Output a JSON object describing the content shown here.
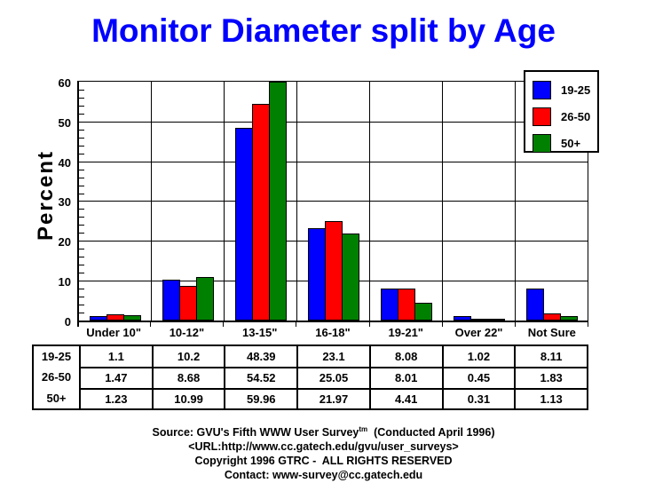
{
  "title": "Monitor Diameter split by Age",
  "colors": {
    "title_blue": "#0000FF",
    "axis_black": "#000000",
    "background": "#FFFFFF"
  },
  "chart_data": {
    "type": "bar",
    "title": "Monitor Diameter split by Age",
    "xlabel": "",
    "ylabel": "Percent",
    "ylim": [
      0,
      60
    ],
    "ytick_interval": 10,
    "y_minor_tick_interval": 2,
    "grid": "horizontal-major",
    "legend_position": "top-right-overlay",
    "yticks": [
      0,
      10,
      20,
      30,
      40,
      50,
      60
    ],
    "categories": [
      "Under 10\"",
      "10-12\"",
      "13-15\"",
      "16-18\"",
      "19-21\"",
      "Over 22\"",
      "Not Sure"
    ],
    "series": [
      {
        "name": "19-25",
        "color": "#0000FF",
        "values": [
          1.1,
          10.2,
          48.39,
          23.1,
          8.08,
          1.02,
          8.11
        ]
      },
      {
        "name": "26-50",
        "color": "#FF0000",
        "values": [
          1.47,
          8.68,
          54.52,
          25.05,
          8.01,
          0.45,
          1.83
        ]
      },
      {
        "name": "50+",
        "color": "#008000",
        "values": [
          1.23,
          10.99,
          59.96,
          21.97,
          4.41,
          0.31,
          1.13
        ]
      }
    ]
  },
  "table": {
    "row_labels": [
      "19-25",
      "26-50",
      "50+"
    ],
    "cells": [
      [
        "1.1",
        "10.2",
        "48.39",
        "23.1",
        "8.08",
        "1.02",
        "8.11"
      ],
      [
        "1.47",
        "8.68",
        "54.52",
        "25.05",
        "8.01",
        "0.45",
        "1.83"
      ],
      [
        "1.23",
        "10.99",
        "59.96",
        "21.97",
        "4.41",
        "0.31",
        "1.13"
      ]
    ]
  },
  "footer": {
    "source_prefix": "Source: GVU's Fifth WWW User Survey",
    "source_sup": "tm",
    "source_suffix": "  (Conducted April 1996)",
    "url_line": "<URL:http://www.cc.gatech.edu/gvu/user_surveys>",
    "copyright_line": "Copyright 1996 GTRC -  ALL RIGHTS RESERVED",
    "contact_line": "Contact: www-survey@cc.gatech.edu"
  }
}
